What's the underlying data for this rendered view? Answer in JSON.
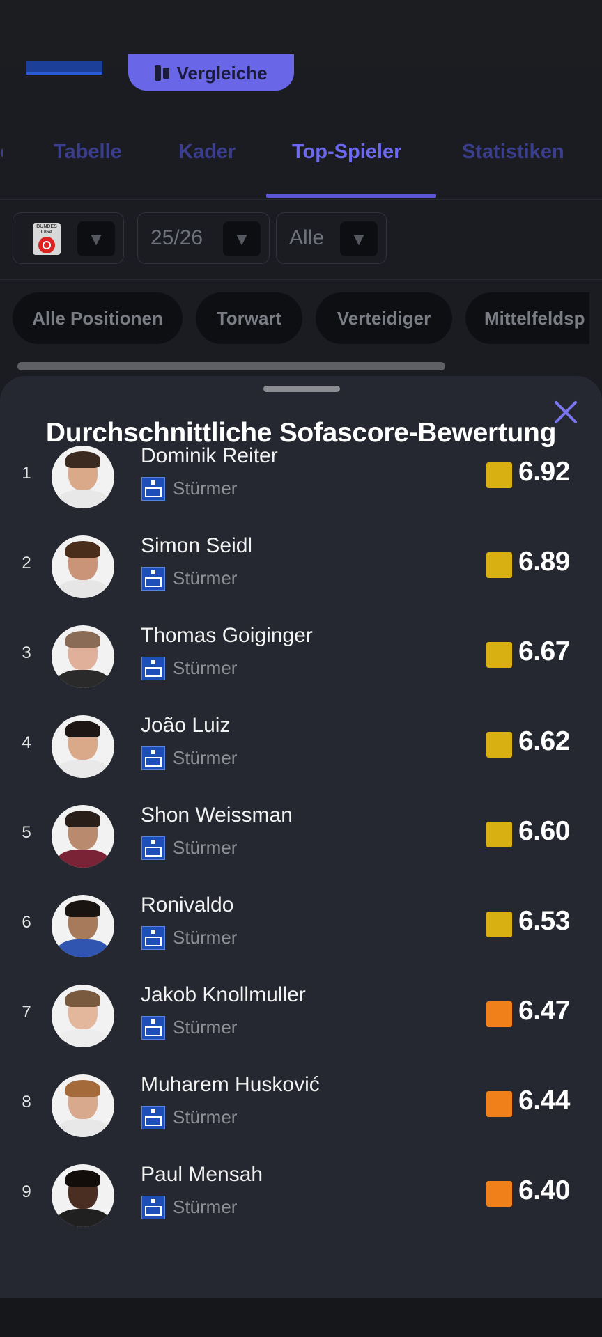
{
  "header": {
    "compare_label": "Vergleiche"
  },
  "tabs": [
    {
      "label": "Tabelle"
    },
    {
      "label": "Kader"
    },
    {
      "label": "Top-Spieler",
      "active": true
    },
    {
      "label": "Statistiken"
    }
  ],
  "filters": {
    "league_logo_text": "BUNDES LIGA",
    "season": "25/26",
    "scope": "Alle"
  },
  "positions": [
    {
      "label": "Alle Positionen"
    },
    {
      "label": "Torwart"
    },
    {
      "label": "Verteidiger"
    },
    {
      "label": "Mittelfeldsp"
    }
  ],
  "sheet": {
    "title": "Durchschnittliche Sofascore-Bewertung",
    "players": [
      {
        "rank": "1",
        "name": "Dominik Reiter",
        "position": "Stürmer",
        "rating": "6.92",
        "rating_color": "#d8b011",
        "skin": "#d9a98a",
        "hair": "#3a2a1f",
        "shirt": "#e8e8e8"
      },
      {
        "rank": "2",
        "name": "Simon Seidl",
        "position": "Stürmer",
        "rating": "6.89",
        "rating_color": "#d8b011",
        "skin": "#c99477",
        "hair": "#4a2d1b",
        "shirt": "#e6e6e6"
      },
      {
        "rank": "3",
        "name": "Thomas Goiginger",
        "position": "Stürmer",
        "rating": "6.67",
        "rating_color": "#d8b011",
        "skin": "#e0b09a",
        "hair": "#8a6b55",
        "shirt": "#2a2a2a"
      },
      {
        "rank": "4",
        "name": "João Luiz",
        "position": "Stürmer",
        "rating": "6.62",
        "rating_color": "#d8b011",
        "skin": "#d9a98a",
        "hair": "#1e1612",
        "shirt": "#e9e9e9"
      },
      {
        "rank": "5",
        "name": "Shon Weissman",
        "position": "Stürmer",
        "rating": "6.60",
        "rating_color": "#d8b011",
        "skin": "#b98a6d",
        "hair": "#2a1f18",
        "shirt": "#7a2236"
      },
      {
        "rank": "6",
        "name": "Ronivaldo",
        "position": "Stürmer",
        "rating": "6.53",
        "rating_color": "#d8b011",
        "skin": "#a87a5c",
        "hair": "#1a1410",
        "shirt": "#2f55b0"
      },
      {
        "rank": "7",
        "name": "Jakob Knollmuller",
        "position": "Stürmer",
        "rating": "6.47",
        "rating_color": "#f08019",
        "skin": "#e2b79c",
        "hair": "#7a5a3e",
        "shirt": "#ededed"
      },
      {
        "rank": "8",
        "name": "Muharem Husković",
        "position": "Stürmer",
        "rating": "6.44",
        "rating_color": "#f08019",
        "skin": "#d8a98c",
        "hair": "#a46a3a",
        "shirt": "#e8e8e8"
      },
      {
        "rank": "9",
        "name": "Paul Mensah",
        "position": "Stürmer",
        "rating": "6.40",
        "rating_color": "#f08019",
        "skin": "#4a2e22",
        "hair": "#120d0a",
        "shirt": "#202020"
      }
    ]
  }
}
